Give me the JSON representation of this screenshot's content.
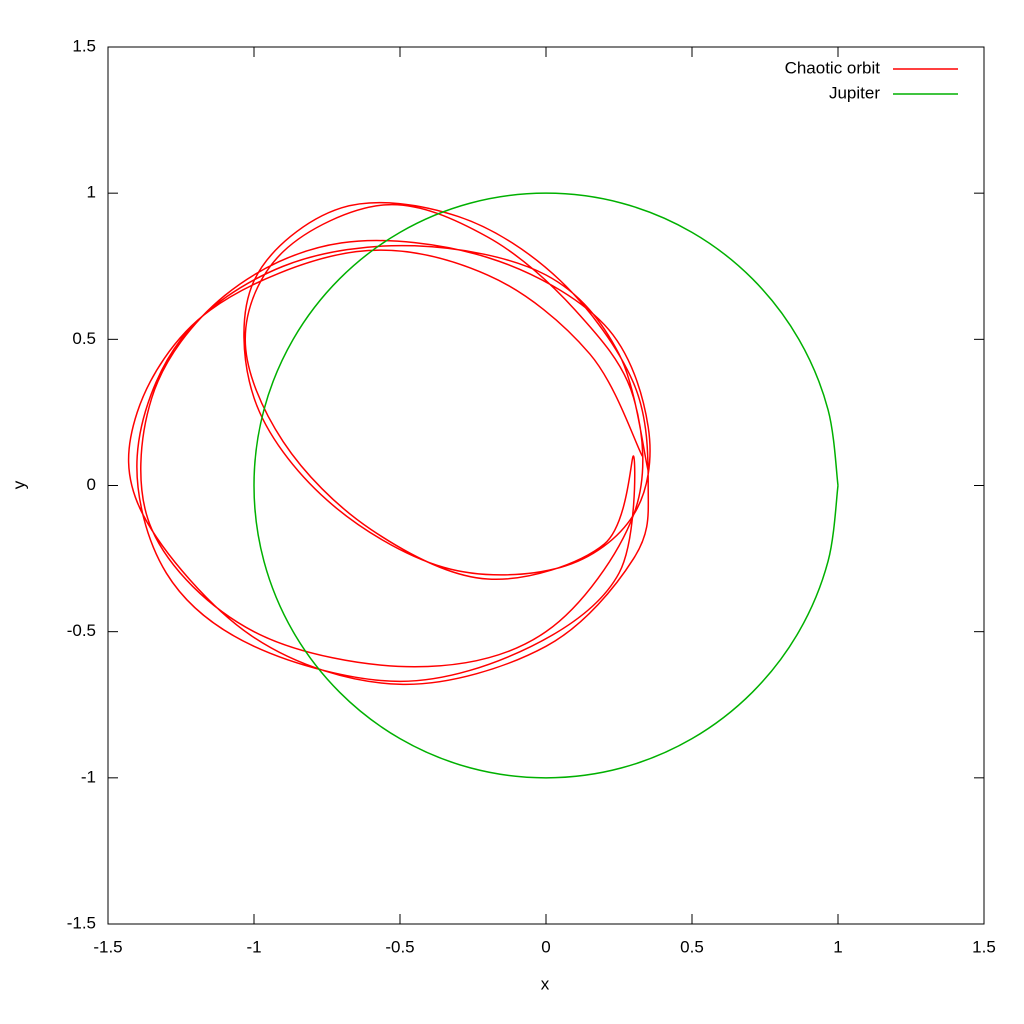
{
  "chart_data": {
    "type": "line",
    "xlabel": "x",
    "ylabel": "y",
    "xlim": [
      -1.5,
      1.5
    ],
    "ylim": [
      -1.5,
      1.5
    ],
    "xticks": [
      -1.5,
      -1,
      -0.5,
      0,
      0.5,
      1,
      1.5
    ],
    "yticks": [
      -1.5,
      -1,
      -0.5,
      0,
      0.5,
      1,
      1.5
    ],
    "legend": "upper right",
    "series": [
      {
        "name": "Chaotic orbit",
        "color": "#ff0000",
        "x": [
          0.35,
          0.25,
          0.0,
          -0.45,
          -0.9,
          -1.25,
          -1.4,
          -1.3,
          -1.0,
          -0.5,
          -0.05,
          0.25,
          0.3,
          0.2,
          -0.2,
          -0.6,
          -0.9,
          -1.03,
          -0.9,
          -0.55,
          -0.2,
          0.1,
          0.3,
          0.3,
          0.0,
          -0.45,
          -1.0,
          -1.35,
          -1.35,
          -1.1,
          -0.7,
          -0.2,
          0.2,
          0.35,
          0.3,
          0.05,
          -0.35,
          -0.75,
          -1.0,
          -1.0,
          -0.7,
          -0.3,
          0.05,
          0.3,
          0.35,
          0.3,
          0.0,
          -0.5,
          -1.0,
          -1.38,
          -1.4,
          -1.15,
          -0.65,
          -0.2,
          0.15,
          0.33
        ],
        "y": [
          0.05,
          0.45,
          0.72,
          0.82,
          0.75,
          0.5,
          0.1,
          -0.3,
          -0.55,
          -0.67,
          -0.55,
          -0.3,
          0.1,
          -0.2,
          -0.32,
          -0.15,
          0.15,
          0.5,
          0.8,
          0.96,
          0.85,
          0.6,
          0.3,
          -0.1,
          -0.5,
          -0.62,
          -0.5,
          -0.15,
          0.3,
          0.65,
          0.83,
          0.78,
          0.55,
          0.2,
          -0.1,
          -0.28,
          -0.28,
          -0.05,
          0.3,
          0.7,
          0.95,
          0.92,
          0.7,
          0.35,
          0.0,
          -0.25,
          -0.55,
          -0.68,
          -0.52,
          -0.1,
          0.25,
          0.6,
          0.8,
          0.72,
          0.45,
          0.1
        ]
      },
      {
        "name": "Jupiter",
        "color": "#00b000",
        "x": [
          1,
          0.966,
          0.866,
          0.707,
          0.5,
          0.259,
          0,
          -0.259,
          -0.5,
          -0.707,
          -0.866,
          -0.966,
          -1,
          -0.966,
          -0.866,
          -0.707,
          -0.5,
          -0.259,
          0,
          0.259,
          0.5,
          0.707,
          0.866,
          0.966,
          1
        ],
        "y": [
          0,
          0.259,
          0.5,
          0.707,
          0.866,
          0.966,
          1,
          0.966,
          0.866,
          0.707,
          0.5,
          0.259,
          0,
          -0.259,
          -0.5,
          -0.707,
          -0.866,
          -0.966,
          -1,
          -0.966,
          -0.866,
          -0.707,
          -0.5,
          -0.259,
          0
        ]
      }
    ]
  }
}
